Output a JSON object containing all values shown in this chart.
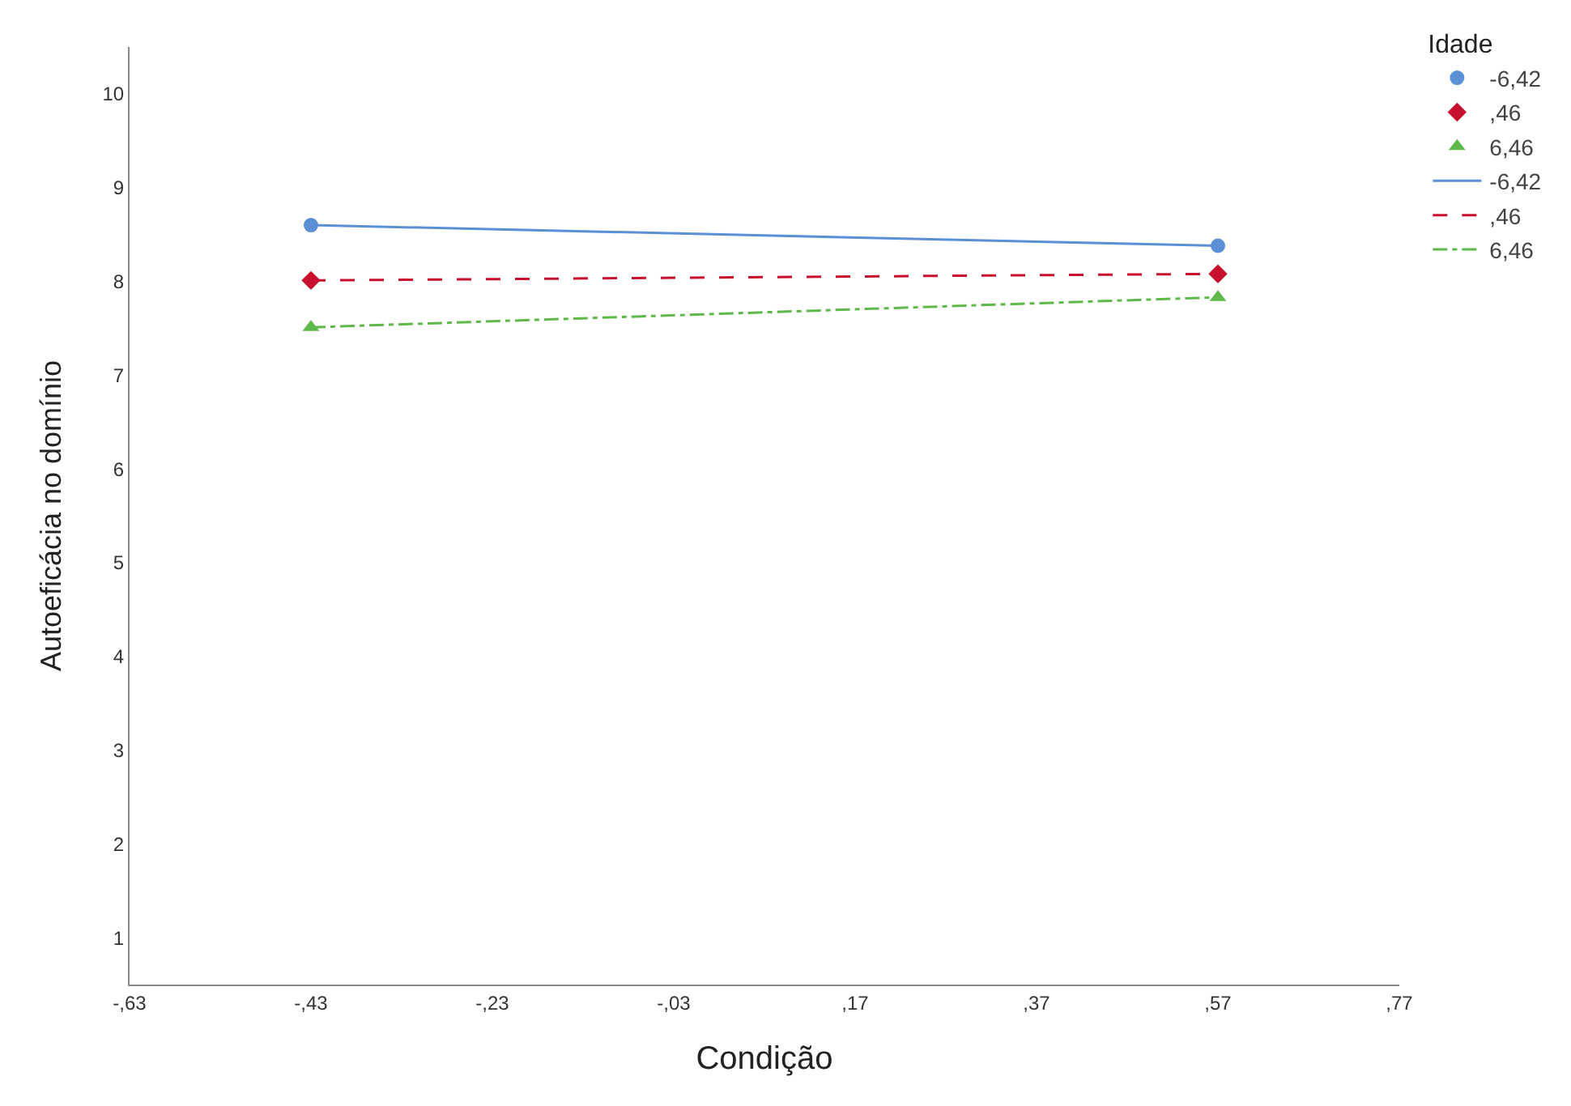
{
  "chart_data": {
    "type": "line",
    "xlabel": "Condição",
    "ylabel": "Autoeficácia no domínio",
    "legend_title": "Idade",
    "legend": "top right",
    "grid": false,
    "categories": [
      "-,63",
      "-,43",
      "-,23",
      "-,03",
      ",17",
      ",37",
      ",57",
      ",77"
    ],
    "ylim": [
      0.5,
      10.5
    ],
    "yticks": [
      1,
      2,
      3,
      4,
      5,
      6,
      7,
      8,
      9,
      10
    ],
    "series": [
      {
        "type": "scatter",
        "name": "-6,42",
        "color": "#5b8fd6",
        "marker": "circle",
        "values": [
          null,
          8.6,
          null,
          null,
          null,
          null,
          8.38,
          null
        ]
      },
      {
        "type": "scatter",
        "name": ",46",
        "color": "#c8102e",
        "marker": "diamond",
        "values": [
          null,
          8.01,
          null,
          null,
          null,
          null,
          8.08,
          null
        ]
      },
      {
        "type": "scatter",
        "name": "6,46",
        "color": "#5fb84a",
        "marker": "triangle",
        "values": [
          null,
          7.51,
          null,
          null,
          null,
          null,
          7.83,
          null
        ]
      },
      {
        "name": "-6,42",
        "color": "#5b8fd6",
        "line_style": "solid",
        "values": [
          null,
          8.6,
          null,
          null,
          null,
          null,
          8.38,
          null
        ]
      },
      {
        "name": ",46",
        "color": "#c8102e",
        "line_style": "dashed",
        "values": [
          null,
          8.01,
          null,
          null,
          null,
          null,
          8.08,
          null
        ]
      },
      {
        "name": "6,46",
        "color": "#5fb84a",
        "line_style": "dashdot",
        "values": [
          null,
          7.51,
          null,
          null,
          null,
          null,
          7.83,
          null
        ]
      }
    ]
  }
}
